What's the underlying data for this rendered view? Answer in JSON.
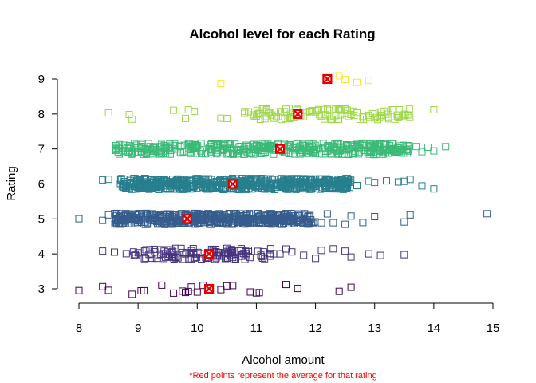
{
  "chart_data": {
    "type": "scatter",
    "title": "Alcohol level for each Rating",
    "xlabel": "Alcohol amount",
    "ylabel": "Rating",
    "xlim": [
      8,
      15
    ],
    "ylim": [
      3,
      9
    ],
    "x_ticks": [
      "8",
      "9",
      "10",
      "11",
      "12",
      "13",
      "14",
      "15"
    ],
    "y_ticks": [
      "3",
      "4",
      "5",
      "6",
      "7",
      "8",
      "9"
    ],
    "footnote": "*Red points represent the average for that rating",
    "footnote_color": "#ff0000",
    "average_marker_color": "#e00000",
    "grid": false,
    "series": [
      {
        "rating": 3,
        "color": "#440154",
        "mean": 10.2,
        "points": [
          8.0,
          8.4,
          8.5,
          8.9,
          9.05,
          9.1,
          9.4,
          9.6,
          9.75,
          9.8,
          9.85,
          9.9,
          10.0,
          10.1,
          10.4,
          10.5,
          10.6,
          10.9,
          11.0,
          11.05,
          11.5,
          11.7,
          12.4,
          12.6
        ]
      },
      {
        "rating": 4,
        "color": "#46337e",
        "mean": 10.2,
        "range": [
          8.9,
          11.3
        ],
        "count": 120,
        "extra": [
          8.4,
          8.6,
          8.8,
          11.4,
          11.5,
          11.6,
          11.8,
          12.0,
          12.1,
          12.3,
          12.5,
          12.6,
          12.9,
          13.1,
          13.5
        ]
      },
      {
        "rating": 5,
        "color": "#365c8d",
        "mean": 9.83,
        "range": [
          8.6,
          12.0
        ],
        "count": 500,
        "extra": [
          8.0,
          8.4,
          8.5,
          12.1,
          12.2,
          12.3,
          12.5,
          12.6,
          12.8,
          13.0,
          13.5,
          13.6,
          14.9
        ]
      },
      {
        "rating": 6,
        "color": "#277f8e",
        "mean": 10.6,
        "range": [
          8.7,
          12.6
        ],
        "count": 600,
        "extra": [
          8.4,
          8.5,
          12.7,
          12.9,
          13.0,
          13.2,
          13.4,
          13.5,
          13.6,
          13.8,
          14.0
        ]
      },
      {
        "rating": 7,
        "color": "#3aba76",
        "mean": 11.4,
        "range": [
          8.6,
          13.6
        ],
        "count": 420,
        "extra": [
          13.7,
          13.8,
          13.9,
          14.0,
          14.2
        ]
      },
      {
        "rating": 8,
        "color": "#9fd94a",
        "mean": 11.7,
        "points": [
          8.5,
          8.85,
          8.9,
          9.6,
          9.8,
          9.85,
          9.95,
          10.4,
          10.5,
          10.8,
          11.0,
          11.2,
          11.3,
          11.5,
          11.6,
          11.8,
          11.9,
          12.0,
          12.1,
          12.2,
          12.4,
          12.5,
          12.6,
          12.7,
          12.8,
          12.9,
          13.0,
          13.1,
          13.3,
          13.4,
          14.0
        ],
        "cluster": [
          10.8,
          13.6
        ],
        "cluster_count": 90
      },
      {
        "rating": 9,
        "color": "#fde725",
        "mean": 12.2,
        "points": [
          10.4,
          12.2,
          12.4,
          12.5,
          12.7,
          12.9
        ]
      }
    ]
  }
}
